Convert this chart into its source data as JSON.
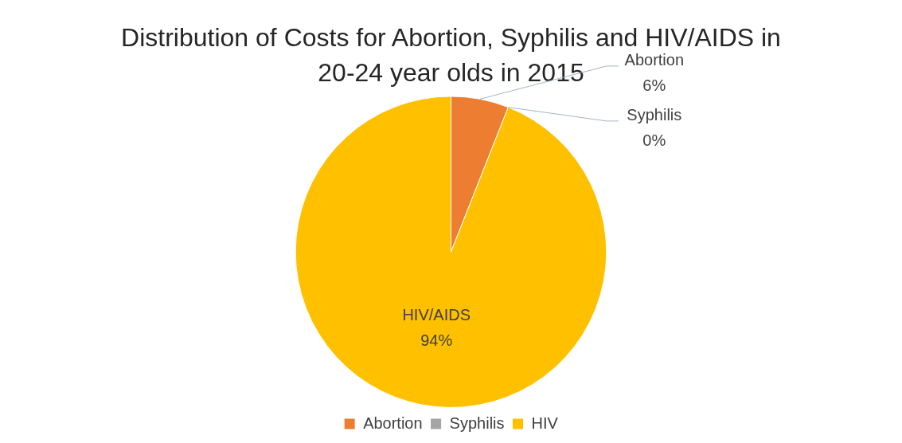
{
  "chart_data": {
    "type": "pie",
    "title": "Distribution of Costs for Abortion, Syphilis and HIV/AIDS in 20-24 year olds in 2015",
    "categories": [
      "Abortion",
      "Syphilis",
      "HIV"
    ],
    "values": [
      6,
      0,
      94
    ],
    "colors": [
      "#ed7d31",
      "#a5a5a5",
      "#ffc000"
    ],
    "value_labels": [
      "Abortion\n6%",
      "Syphilis\n0%",
      "HIV/AIDS\n94%"
    ],
    "legend": "bottom"
  }
}
